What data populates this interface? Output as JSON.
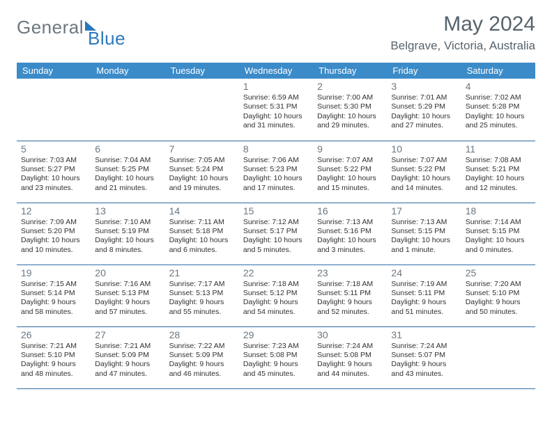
{
  "logo": {
    "part1": "General",
    "part2": "Blue"
  },
  "title": "May 2024",
  "location": "Belgrave, Victoria, Australia",
  "colors": {
    "header_bg": "#3b8bc9",
    "header_text": "#ffffff",
    "row_border": "#2c6ca5",
    "daynum": "#6a7781",
    "body_text": "#303030",
    "title_text": "#57636c",
    "logo_gray": "#6c7780",
    "logo_blue": "#2c78bd",
    "background": "#ffffff"
  },
  "day_headers": [
    "Sunday",
    "Monday",
    "Tuesday",
    "Wednesday",
    "Thursday",
    "Friday",
    "Saturday"
  ],
  "weeks": [
    [
      null,
      null,
      null,
      {
        "n": "1",
        "sr": "6:59 AM",
        "ss": "5:31 PM",
        "dl": "10 hours and 31 minutes."
      },
      {
        "n": "2",
        "sr": "7:00 AM",
        "ss": "5:30 PM",
        "dl": "10 hours and 29 minutes."
      },
      {
        "n": "3",
        "sr": "7:01 AM",
        "ss": "5:29 PM",
        "dl": "10 hours and 27 minutes."
      },
      {
        "n": "4",
        "sr": "7:02 AM",
        "ss": "5:28 PM",
        "dl": "10 hours and 25 minutes."
      }
    ],
    [
      {
        "n": "5",
        "sr": "7:03 AM",
        "ss": "5:27 PM",
        "dl": "10 hours and 23 minutes."
      },
      {
        "n": "6",
        "sr": "7:04 AM",
        "ss": "5:25 PM",
        "dl": "10 hours and 21 minutes."
      },
      {
        "n": "7",
        "sr": "7:05 AM",
        "ss": "5:24 PM",
        "dl": "10 hours and 19 minutes."
      },
      {
        "n": "8",
        "sr": "7:06 AM",
        "ss": "5:23 PM",
        "dl": "10 hours and 17 minutes."
      },
      {
        "n": "9",
        "sr": "7:07 AM",
        "ss": "5:22 PM",
        "dl": "10 hours and 15 minutes."
      },
      {
        "n": "10",
        "sr": "7:07 AM",
        "ss": "5:22 PM",
        "dl": "10 hours and 14 minutes."
      },
      {
        "n": "11",
        "sr": "7:08 AM",
        "ss": "5:21 PM",
        "dl": "10 hours and 12 minutes."
      }
    ],
    [
      {
        "n": "12",
        "sr": "7:09 AM",
        "ss": "5:20 PM",
        "dl": "10 hours and 10 minutes."
      },
      {
        "n": "13",
        "sr": "7:10 AM",
        "ss": "5:19 PM",
        "dl": "10 hours and 8 minutes."
      },
      {
        "n": "14",
        "sr": "7:11 AM",
        "ss": "5:18 PM",
        "dl": "10 hours and 6 minutes."
      },
      {
        "n": "15",
        "sr": "7:12 AM",
        "ss": "5:17 PM",
        "dl": "10 hours and 5 minutes."
      },
      {
        "n": "16",
        "sr": "7:13 AM",
        "ss": "5:16 PM",
        "dl": "10 hours and 3 minutes."
      },
      {
        "n": "17",
        "sr": "7:13 AM",
        "ss": "5:15 PM",
        "dl": "10 hours and 1 minute."
      },
      {
        "n": "18",
        "sr": "7:14 AM",
        "ss": "5:15 PM",
        "dl": "10 hours and 0 minutes."
      }
    ],
    [
      {
        "n": "19",
        "sr": "7:15 AM",
        "ss": "5:14 PM",
        "dl": "9 hours and 58 minutes."
      },
      {
        "n": "20",
        "sr": "7:16 AM",
        "ss": "5:13 PM",
        "dl": "9 hours and 57 minutes."
      },
      {
        "n": "21",
        "sr": "7:17 AM",
        "ss": "5:13 PM",
        "dl": "9 hours and 55 minutes."
      },
      {
        "n": "22",
        "sr": "7:18 AM",
        "ss": "5:12 PM",
        "dl": "9 hours and 54 minutes."
      },
      {
        "n": "23",
        "sr": "7:18 AM",
        "ss": "5:11 PM",
        "dl": "9 hours and 52 minutes."
      },
      {
        "n": "24",
        "sr": "7:19 AM",
        "ss": "5:11 PM",
        "dl": "9 hours and 51 minutes."
      },
      {
        "n": "25",
        "sr": "7:20 AM",
        "ss": "5:10 PM",
        "dl": "9 hours and 50 minutes."
      }
    ],
    [
      {
        "n": "26",
        "sr": "7:21 AM",
        "ss": "5:10 PM",
        "dl": "9 hours and 48 minutes."
      },
      {
        "n": "27",
        "sr": "7:21 AM",
        "ss": "5:09 PM",
        "dl": "9 hours and 47 minutes."
      },
      {
        "n": "28",
        "sr": "7:22 AM",
        "ss": "5:09 PM",
        "dl": "9 hours and 46 minutes."
      },
      {
        "n": "29",
        "sr": "7:23 AM",
        "ss": "5:08 PM",
        "dl": "9 hours and 45 minutes."
      },
      {
        "n": "30",
        "sr": "7:24 AM",
        "ss": "5:08 PM",
        "dl": "9 hours and 44 minutes."
      },
      {
        "n": "31",
        "sr": "7:24 AM",
        "ss": "5:07 PM",
        "dl": "9 hours and 43 minutes."
      },
      null
    ]
  ],
  "labels": {
    "sunrise": "Sunrise: ",
    "sunset": "Sunset: ",
    "daylight": "Daylight: "
  }
}
